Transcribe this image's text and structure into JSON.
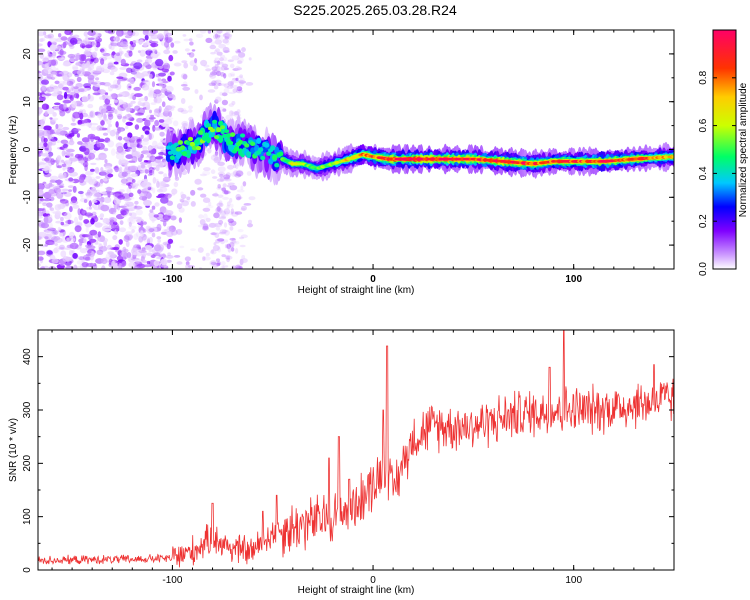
{
  "figure_title": "S225.2025.265.03.28.R24",
  "chart_data": [
    {
      "type": "heatmap",
      "title": "S225.2025.265.03.28.R24",
      "xlabel": "Height of straight line (km)",
      "ylabel": "Frequency (Hz)",
      "xlim": [
        -167,
        150
      ],
      "ylim": [
        -25,
        25
      ],
      "xticks": [
        -100,
        0,
        100
      ],
      "yticks": [
        -20,
        -10,
        0,
        10,
        20
      ],
      "xtick_labels": [
        "-100",
        "0",
        "100"
      ],
      "ytick_labels": [
        "-20",
        "-10",
        "0",
        "10",
        "20"
      ],
      "colorbar": {
        "label": "Normalized spectral amplitude",
        "range": [
          0,
          1
        ],
        "ticks": [
          0.0,
          0.2,
          0.4,
          0.6,
          0.8
        ],
        "tick_labels": [
          "0.0",
          "0.2",
          "0.4",
          "0.6",
          "0.8"
        ],
        "colormap": [
          "#ffffff",
          "#cc99ff",
          "#7f00ff",
          "#0000ff",
          "#00c8ff",
          "#00ff66",
          "#ccff00",
          "#ffcc00",
          "#ff3300",
          "#ff0066"
        ]
      },
      "ridge": {
        "x": [
          -102,
          -95,
          -88,
          -80,
          -72,
          -65,
          -58,
          -52,
          -45,
          -40,
          -35,
          -28,
          -20,
          -12,
          -5,
          0,
          8,
          20,
          35,
          50,
          65,
          80,
          90,
          100,
          115,
          130,
          150
        ],
        "freq": [
          -1,
          0,
          1,
          5,
          2,
          1,
          0,
          -1,
          -2,
          -3,
          -3,
          -4,
          -3,
          -2,
          -1,
          -1.5,
          -2,
          -2,
          -2,
          -2,
          -2.5,
          -3,
          -2.5,
          -2.5,
          -2.5,
          -2,
          -1.5
        ],
        "amplitude": [
          0.4,
          0.5,
          0.5,
          0.5,
          0.5,
          0.5,
          0.45,
          0.4,
          0.5,
          0.6,
          0.55,
          0.5,
          0.55,
          0.7,
          0.75,
          0.8,
          0.9,
          0.95,
          0.95,
          0.9,
          0.95,
          0.85,
          0.85,
          0.85,
          0.9,
          0.85,
          0.7
        ]
      },
      "noise_region_x": [
        -167,
        -100
      ],
      "noise_spread_region_x": [
        -100,
        -60
      ]
    },
    {
      "type": "line",
      "xlabel": "Height of straight line (km)",
      "ylabel": "SNR (10 * v/v)",
      "xlim": [
        -167,
        150
      ],
      "ylim": [
        0,
        450
      ],
      "xticks": [
        -100,
        0,
        100
      ],
      "yticks": [
        0,
        100,
        200,
        300,
        400
      ],
      "xtick_labels": [
        "-100",
        "0",
        "100"
      ],
      "ytick_labels": [
        "0",
        "100",
        "200",
        "300",
        "400"
      ],
      "color": "#ee3333",
      "trend": {
        "x": [
          -167,
          -120,
          -100,
          -90,
          -80,
          -70,
          -60,
          -50,
          -40,
          -30,
          -20,
          -10,
          0,
          5,
          10,
          20,
          30,
          50,
          70,
          90,
          110,
          130,
          150
        ],
        "snr": [
          18,
          20,
          22,
          35,
          60,
          40,
          35,
          70,
          80,
          90,
          100,
          120,
          160,
          190,
          150,
          250,
          270,
          270,
          290,
          300,
          300,
          310,
          320
        ]
      },
      "spikes": [
        {
          "x": -80,
          "snr": 125
        },
        {
          "x": -55,
          "snr": 110
        },
        {
          "x": -48,
          "snr": 140
        },
        {
          "x": -22,
          "snr": 210
        },
        {
          "x": -17,
          "snr": 250
        },
        {
          "x": -12,
          "snr": 170
        },
        {
          "x": 5,
          "snr": 300
        },
        {
          "x": 7,
          "snr": 420
        },
        {
          "x": 95,
          "snr": 450
        },
        {
          "x": 88,
          "snr": 380
        },
        {
          "x": 140,
          "snr": 385
        }
      ]
    }
  ]
}
